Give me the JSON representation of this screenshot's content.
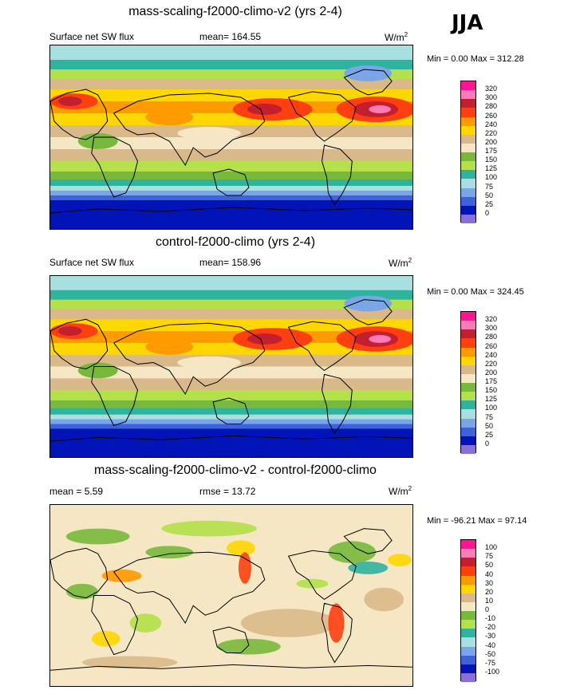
{
  "season": "JJA",
  "panels": [
    {
      "title": "mass-scaling-f2000-climo-v2 (yrs 2-4)",
      "left_label": "Surface net SW flux",
      "center_label": "mean= 164.55",
      "units": "W/m",
      "units_sup": "2",
      "minmax": "Min =   0.00 Max = 312.28",
      "colorbar": {
        "labels": [
          "320",
          "300",
          "280",
          "260",
          "240",
          "220",
          "200",
          "175",
          "150",
          "125",
          "100",
          "75",
          "50",
          "25",
          "0"
        ],
        "colors": [
          "#ff1493",
          "#ff7ab8",
          "#c31f2e",
          "#ff3f10",
          "#ff9a00",
          "#ffd700",
          "#d9b98a",
          "#f5e7c4",
          "#78b83a",
          "#b4e04a",
          "#2fb39e",
          "#a8dfe0",
          "#7aa6e8",
          "#3e62da",
          "#0014b8",
          "#8a6fd8"
        ]
      }
    },
    {
      "title": "control-f2000-climo (yrs 2-4)",
      "left_label": "Surface net SW flux",
      "center_label": "mean= 158.96",
      "units": "W/m",
      "units_sup": "2",
      "minmax": "Min =   0.00 Max = 324.45",
      "colorbar": {
        "labels": [
          "320",
          "300",
          "280",
          "260",
          "240",
          "220",
          "200",
          "175",
          "150",
          "125",
          "100",
          "75",
          "50",
          "25",
          "0"
        ],
        "colors": [
          "#ff1493",
          "#ff7ab8",
          "#c31f2e",
          "#ff3f10",
          "#ff9a00",
          "#ffd700",
          "#d9b98a",
          "#f5e7c4",
          "#78b83a",
          "#b4e04a",
          "#2fb39e",
          "#a8dfe0",
          "#7aa6e8",
          "#3e62da",
          "#0014b8",
          "#8a6fd8"
        ]
      }
    },
    {
      "title": "mass-scaling-f2000-climo-v2 - control-f2000-climo",
      "left_label": "mean =   5.59",
      "center_label": "rmse =  13.72",
      "units": "W/m",
      "units_sup": "2",
      "minmax": "Min = -96.21 Max =  97.14",
      "colorbar": {
        "labels": [
          "100",
          "75",
          "50",
          "40",
          "30",
          "20",
          "10",
          "0",
          "-10",
          "-20",
          "-30",
          "-40",
          "-50",
          "-75",
          "-100"
        ],
        "colors": [
          "#ff1493",
          "#ff7ab8",
          "#c31f2e",
          "#ff3f10",
          "#ff9a00",
          "#ffd700",
          "#d9b98a",
          "#f5e7c4",
          "#78b83a",
          "#b4e04a",
          "#2fb39e",
          "#a8dfe0",
          "#7aa6e8",
          "#3e62da",
          "#0014b8",
          "#8a6fd8"
        ]
      }
    }
  ]
}
